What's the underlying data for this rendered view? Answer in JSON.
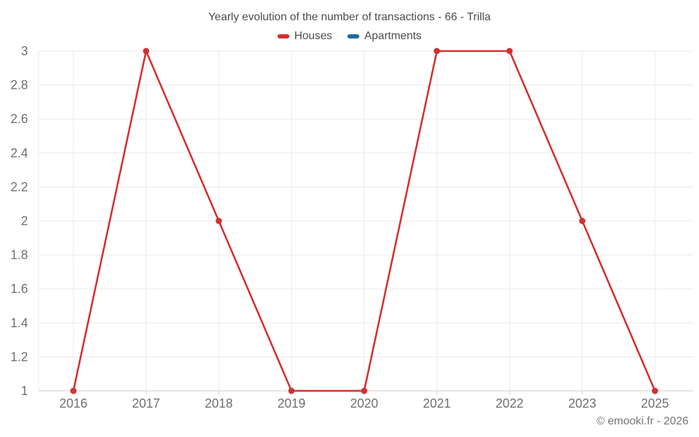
{
  "chart_data": {
    "type": "line",
    "title": "Yearly evolution of the number of transactions - 66 - Trilla",
    "categories": [
      "2016",
      "2017",
      "2018",
      "2019",
      "2020",
      "2021",
      "2022",
      "2023",
      "2025"
    ],
    "series": [
      {
        "name": "Houses",
        "color": "#d3302e",
        "values": [
          1,
          3,
          2,
          1,
          1,
          3,
          3,
          2,
          1
        ]
      },
      {
        "name": "Apartments",
        "color": "#1b6d9e",
        "values": []
      }
    ],
    "ylim": [
      1,
      3
    ],
    "y_tick_labels": [
      "1",
      "1.2",
      "1.4",
      "1.6",
      "1.8",
      "2",
      "2.2",
      "2.4",
      "2.6",
      "2.8",
      "3"
    ],
    "xlabel": "",
    "ylabel": "",
    "grid": true,
    "legend_position": "top"
  },
  "footer": {
    "credit": "© emooki.fr - 2026"
  }
}
